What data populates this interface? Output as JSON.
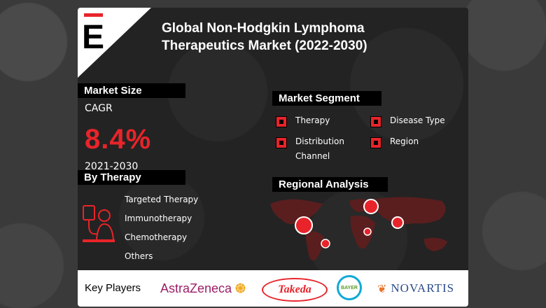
{
  "title_line1": "Global Non-Hodgkin Lymphoma",
  "title_line2": "Therapeutics Market (2022-2030)",
  "logo_letter": "E",
  "market_size": {
    "heading": "Market Size",
    "cagr_label": "CAGR",
    "cagr_value": "8.4%",
    "period": "2021-2030"
  },
  "market_segment": {
    "heading": "Market Segment",
    "items": [
      "Therapy",
      "Disease Type",
      "Distribution",
      "Channel",
      "Region"
    ]
  },
  "by_therapy": {
    "heading": "By Therapy",
    "items": [
      "Targeted Therapy",
      "Immunotherapy",
      "Chemotherapy",
      "Others"
    ],
    "icon": "patient-iv-drip-icon"
  },
  "regional_analysis": {
    "heading": "Regional Analysis"
  },
  "key_players": {
    "heading": "Key Players",
    "companies": [
      "AstraZeneca",
      "Takeda",
      "BAYER",
      "NOVARTIS"
    ]
  },
  "colors": {
    "accent": "#e8242a",
    "background": "#232323",
    "header_bg": "#000000"
  }
}
